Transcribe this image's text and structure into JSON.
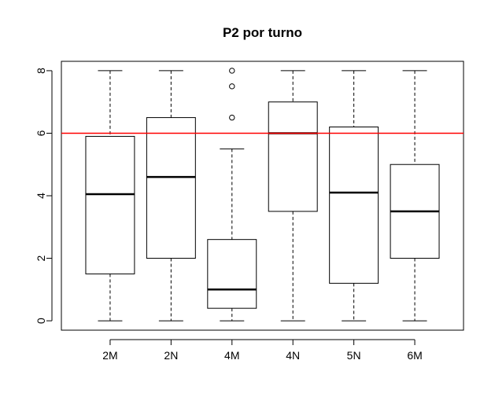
{
  "chart_data": {
    "type": "boxplot",
    "title": "P2 por turno",
    "xlabel": "",
    "ylabel": "",
    "ylim": [
      -0.3,
      8.3
    ],
    "yticks": [
      "0",
      "2",
      "4",
      "6",
      "8"
    ],
    "categories": [
      "2M",
      "2N",
      "4M",
      "4N",
      "5N",
      "6M"
    ],
    "boxes": [
      {
        "label": "2M",
        "min": 0,
        "q1": 1.5,
        "median": 4.05,
        "q3": 5.9,
        "max": 8,
        "outliers": []
      },
      {
        "label": "2N",
        "min": 0,
        "q1": 2.0,
        "median": 4.6,
        "q3": 6.5,
        "max": 8,
        "outliers": []
      },
      {
        "label": "4M",
        "min": 0,
        "q1": 0.4,
        "median": 1.0,
        "q3": 2.6,
        "max": 5.5,
        "outliers": [
          6.5,
          7.5,
          8.0
        ]
      },
      {
        "label": "4N",
        "min": 0,
        "q1": 3.5,
        "median": 6.0,
        "q3": 7.0,
        "max": 8,
        "outliers": []
      },
      {
        "label": "5N",
        "min": 0,
        "q1": 1.2,
        "median": 4.1,
        "q3": 6.2,
        "max": 8,
        "outliers": []
      },
      {
        "label": "6M",
        "min": 0,
        "q1": 2.0,
        "median": 3.5,
        "q3": 5.0,
        "max": 8,
        "outliers": []
      }
    ],
    "reference_line": {
      "y": 6,
      "color": "#ff0000"
    },
    "grid": false,
    "legend": "none"
  }
}
